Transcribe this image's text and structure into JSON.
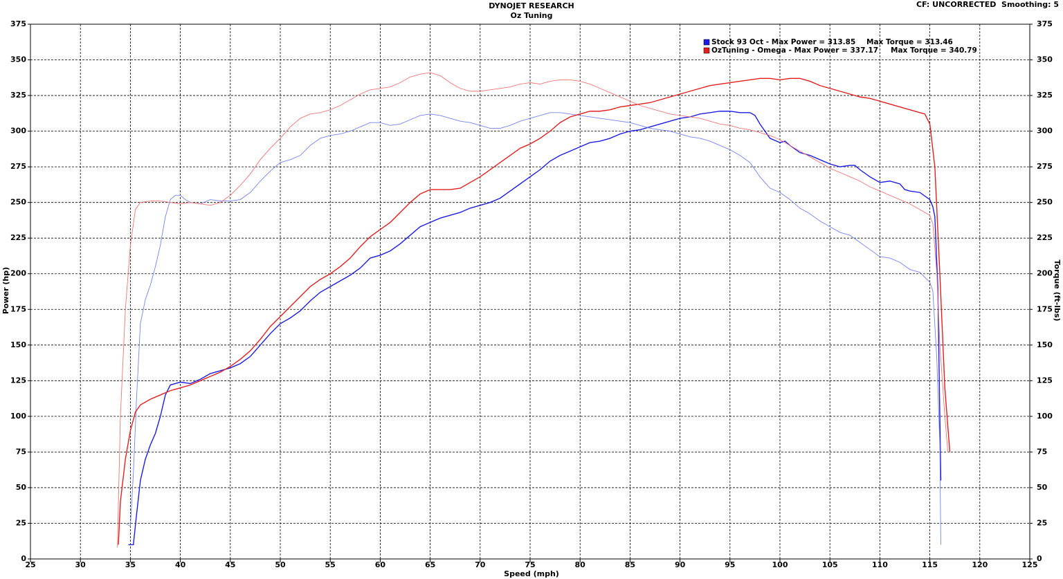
{
  "chart_data": {
    "type": "line",
    "title": "DYNOJET RESEARCH",
    "subtitle": "Oz Tuning",
    "corner_note": "CF: UNCORRECTED  Smoothing: 5",
    "x_label": "Speed (mph)",
    "y_label": "Power (hp)",
    "y2_label": "Torque (ft-lbs)",
    "xlim": [
      25,
      125
    ],
    "xticks": [
      25,
      30,
      35,
      40,
      45,
      50,
      55,
      60,
      65,
      70,
      75,
      80,
      85,
      90,
      95,
      100,
      105,
      110,
      115,
      120,
      125
    ],
    "ylim": [
      0,
      375
    ],
    "yticks": [
      0,
      25,
      50,
      75,
      100,
      125,
      150,
      175,
      200,
      225,
      250,
      275,
      300,
      325,
      350,
      375
    ],
    "y2lim": [
      0,
      375
    ],
    "y2ticks": [
      0,
      25,
      50,
      75,
      100,
      125,
      150,
      175,
      200,
      225,
      250,
      275,
      300,
      325,
      350,
      375
    ],
    "grid": true,
    "series": [
      {
        "name": "Stock 93 Oct - Max Power = 313.85",
        "color": "#1c1ce6",
        "axis": "y",
        "x": [
          34.8,
          35.3,
          35.6,
          36,
          36.5,
          37,
          37.5,
          38,
          38.5,
          39,
          40,
          41,
          42,
          43,
          44,
          45,
          46,
          47,
          48,
          49,
          50,
          51,
          52,
          53,
          54,
          55,
          56,
          57,
          58,
          59,
          60,
          61,
          62,
          63,
          64,
          65,
          66,
          67,
          68,
          69,
          70,
          71,
          72,
          73,
          74,
          75,
          76,
          77,
          78,
          79,
          80,
          81,
          82,
          83,
          84,
          85,
          86,
          87,
          88,
          89,
          90,
          91,
          92,
          93,
          94,
          95,
          96,
          97,
          97.5,
          98,
          99,
          100,
          100.5,
          101,
          102,
          103,
          104,
          105,
          106,
          107,
          107.5,
          108,
          109,
          110,
          111,
          112,
          112.5,
          113,
          114,
          115,
          115.3,
          115.5,
          115.8,
          116,
          116.1
        ],
        "values": [
          10,
          10,
          30,
          55,
          70,
          80,
          88,
          100,
          115,
          122,
          124,
          123,
          126,
          130,
          132,
          134,
          137,
          142,
          150,
          158,
          165,
          169,
          174,
          181,
          187,
          191,
          195,
          199,
          204,
          211,
          213,
          216,
          221,
          227,
          233,
          236,
          239,
          241,
          243,
          246,
          248,
          250,
          253,
          258,
          263,
          268,
          273,
          279,
          283,
          286,
          289,
          292,
          293,
          295,
          298,
          300,
          301,
          303,
          305,
          307,
          309,
          310,
          312,
          313,
          314,
          314,
          313,
          313,
          311,
          305,
          295,
          292,
          293,
          290,
          285,
          283,
          280,
          277,
          275,
          276,
          276,
          273,
          268,
          264,
          265,
          263,
          259,
          258,
          257,
          252,
          247,
          240,
          190,
          100,
          55
        ]
      },
      {
        "name": "Max Torque = 313.46",
        "color": "#7383f2",
        "axis": "y2",
        "x": [
          34.5,
          35,
          35.3,
          35.6,
          36,
          36.5,
          37,
          37.5,
          38,
          38.5,
          39,
          39.5,
          40,
          40.5,
          41,
          42,
          43,
          44,
          45,
          46,
          47,
          48,
          49,
          50,
          51,
          52,
          53,
          54,
          55,
          56,
          57,
          58,
          59,
          60,
          61,
          62,
          63,
          64,
          65,
          66,
          67,
          68,
          69,
          70,
          71,
          72,
          73,
          74,
          75,
          76,
          77,
          78,
          79,
          80,
          81,
          82,
          83,
          84,
          85,
          86,
          87,
          88,
          89,
          90,
          91,
          92,
          93,
          94,
          95,
          96,
          97,
          98,
          99,
          100,
          101,
          102,
          103,
          104,
          105,
          106,
          107,
          108,
          109,
          110,
          111,
          112,
          113,
          114,
          115,
          115.3,
          115.7,
          116,
          116.1
        ],
        "values": [
          25,
          23,
          60,
          110,
          165,
          182,
          192,
          205,
          220,
          240,
          252,
          255,
          255,
          252,
          250,
          249,
          252,
          251,
          251,
          252,
          257,
          265,
          272,
          278,
          280,
          283,
          290,
          295,
          297,
          298,
          300,
          303,
          306,
          306,
          304,
          305,
          308,
          311,
          312,
          311,
          309,
          307,
          306,
          304,
          302,
          302,
          304,
          307,
          309,
          311,
          313,
          313,
          312,
          311,
          310,
          309,
          308,
          307,
          306,
          304,
          302,
          301,
          300,
          298,
          296,
          295,
          293,
          290,
          287,
          283,
          278,
          268,
          260,
          257,
          252,
          246,
          242,
          237,
          233,
          229,
          227,
          222,
          217,
          212,
          211,
          208,
          203,
          201,
          194,
          188,
          140,
          80,
          10
        ]
      },
      {
        "name": "OzTuning - Omega - Max Power = 337.17",
        "color": "#e41e1e",
        "axis": "y",
        "x": [
          33.8,
          34,
          34.5,
          35,
          35.5,
          36,
          37,
          38,
          39,
          40,
          41,
          42,
          43,
          44,
          45,
          46,
          47,
          48,
          49,
          50,
          51,
          52,
          53,
          54,
          55,
          56,
          57,
          58,
          59,
          60,
          61,
          62,
          63,
          64,
          65,
          66,
          67,
          68,
          69,
          70,
          71,
          72,
          73,
          74,
          75,
          76,
          77,
          78,
          79,
          80,
          81,
          82,
          83,
          84,
          85,
          86,
          87,
          88,
          89,
          90,
          91,
          92,
          93,
          94,
          95,
          96,
          97,
          98,
          99,
          100,
          101,
          102,
          103,
          104,
          105,
          106,
          107,
          108,
          109,
          110,
          111,
          112,
          113,
          114,
          114.5,
          115,
          115.5,
          116,
          116.5,
          117
        ],
        "values": [
          10,
          40,
          70,
          90,
          103,
          108,
          112,
          115,
          118,
          120,
          122,
          125,
          128,
          131,
          135,
          140,
          146,
          154,
          163,
          170,
          177,
          184,
          191,
          196,
          200,
          205,
          211,
          219,
          226,
          231,
          236,
          243,
          250,
          256,
          259,
          259,
          259,
          260,
          264,
          268,
          273,
          278,
          283,
          288,
          291,
          295,
          300,
          306,
          310,
          312,
          314,
          314,
          315,
          317,
          318,
          319,
          320,
          322,
          324,
          326,
          328,
          330,
          332,
          333,
          334,
          335,
          336,
          337,
          337,
          336,
          337,
          337,
          335,
          332,
          330,
          328,
          326,
          324,
          323,
          321,
          319,
          317,
          315,
          313,
          312,
          305,
          275,
          200,
          120,
          75
        ]
      },
      {
        "name": "Max Torque = 340.79",
        "color": "#f27474",
        "axis": "y2",
        "x": [
          33.7,
          34,
          34.5,
          35,
          35.5,
          36,
          37,
          38,
          39,
          40,
          41,
          42,
          43,
          44,
          45,
          46,
          47,
          48,
          49,
          50,
          51,
          52,
          53,
          54,
          55,
          56,
          57,
          58,
          59,
          60,
          61,
          62,
          63,
          64,
          65,
          66,
          67,
          68,
          69,
          70,
          71,
          72,
          73,
          74,
          75,
          76,
          77,
          78,
          79,
          80,
          81,
          82,
          83,
          84,
          85,
          86,
          87,
          88,
          89,
          90,
          91,
          92,
          93,
          94,
          95,
          96,
          97,
          98,
          99,
          100,
          101,
          102,
          103,
          104,
          105,
          106,
          107,
          108,
          109,
          110,
          111,
          112,
          113,
          114,
          115,
          115.3,
          115.7,
          116,
          116.5,
          116.8
        ],
        "values": [
          8,
          100,
          175,
          220,
          245,
          250,
          251,
          251,
          250,
          249,
          250,
          249,
          248,
          250,
          255,
          262,
          270,
          280,
          288,
          295,
          303,
          309,
          312,
          313,
          315,
          318,
          322,
          326,
          329,
          330,
          331,
          334,
          338,
          340,
          341,
          339,
          334,
          330,
          328,
          328,
          329,
          330,
          331,
          333,
          334,
          333,
          335,
          336,
          336,
          335,
          333,
          330,
          327,
          324,
          321,
          318,
          316,
          314,
          312,
          311,
          310,
          309,
          307,
          305,
          304,
          302,
          301,
          299,
          297,
          294,
          290,
          286,
          282,
          278,
          274,
          271,
          268,
          265,
          261,
          258,
          255,
          252,
          249,
          245,
          241,
          235,
          200,
          150,
          100,
          75
        ]
      }
    ]
  }
}
